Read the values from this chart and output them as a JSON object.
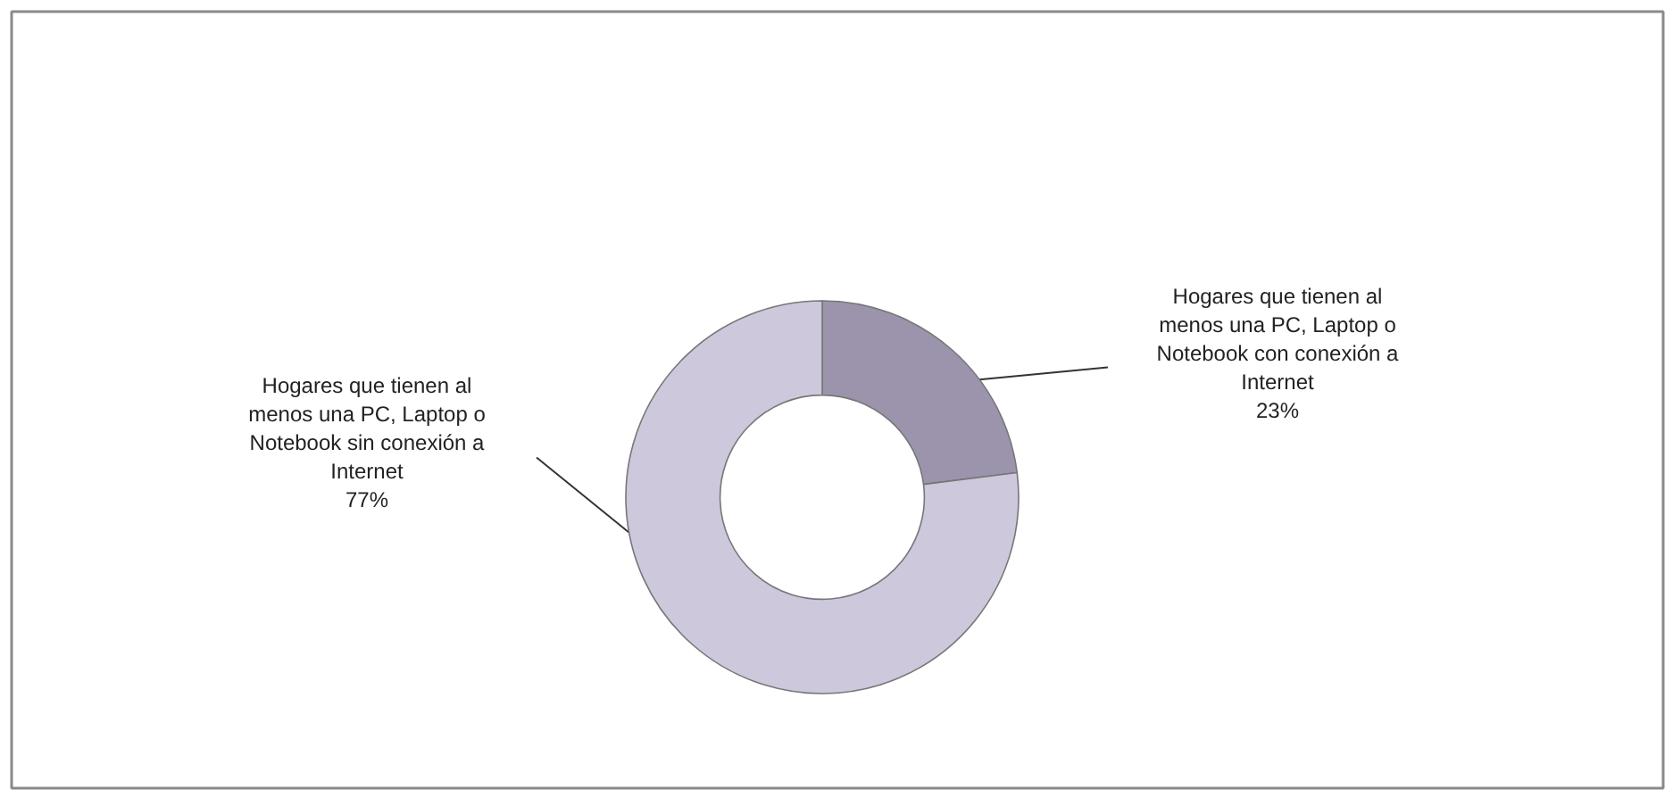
{
  "chart_data": {
    "type": "donut",
    "categories": [
      "Hogares que tienen al menos una PC, Laptop o Notebook con conexión a Internet",
      "Hogares que tienen al menos una PC, Laptop o Notebook sin conexión a Internet"
    ],
    "values": [
      23,
      77
    ],
    "value_labels": [
      "23%",
      "77%"
    ],
    "colors": [
      "#9c94ac",
      "#cdc8dc"
    ]
  }
}
